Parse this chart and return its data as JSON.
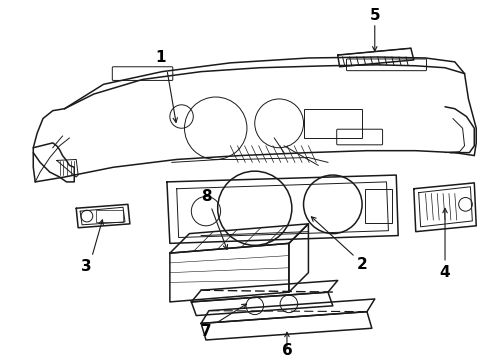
{
  "background_color": "#ffffff",
  "line_color": "#1a1a1a",
  "label_color": "#000000",
  "label_fontsize": 11,
  "label_fontweight": "bold",
  "figsize": [
    4.9,
    3.6
  ],
  "dpi": 100
}
